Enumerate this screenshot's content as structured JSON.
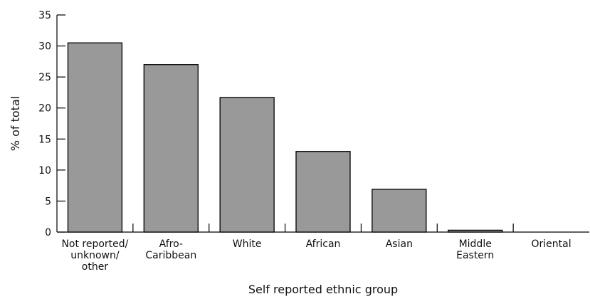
{
  "chart_data": {
    "type": "bar",
    "title": "",
    "xlabel": "Self reported ethnic group",
    "ylabel": "% of total",
    "ylim": [
      0,
      35
    ],
    "yticks": [
      "0",
      "5",
      "10",
      "15",
      "20",
      "25",
      "30",
      "35"
    ],
    "grid": false,
    "categories": [
      [
        "Not reported/",
        "unknown/",
        "other"
      ],
      [
        "Afro-",
        "Caribbean"
      ],
      [
        "White"
      ],
      [
        "African"
      ],
      [
        "Asian"
      ],
      [
        "Middle",
        "Eastern"
      ],
      [
        "Oriental"
      ]
    ],
    "values": [
      30.5,
      27.0,
      21.7,
      13.0,
      6.9,
      0.3,
      0
    ],
    "bar_color": "#999999",
    "bar_stroke": "#000000"
  }
}
